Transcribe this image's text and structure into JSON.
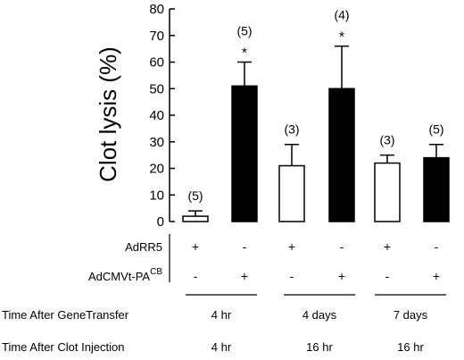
{
  "chart_data": {
    "type": "bar",
    "ylabel": "Clot lysis (%)",
    "ylim": [
      0,
      80
    ],
    "yticks": [
      "0",
      "10",
      "20",
      "30",
      "40",
      "50",
      "60",
      "70",
      "80"
    ],
    "colors": {
      "adrr5": "#ffffff",
      "adcmvt": "#000000",
      "stroke": "#000000"
    },
    "bars": [
      {
        "treatment": "AdRR5",
        "value": 2,
        "error": 2,
        "n_label": "(5)",
        "significance": ""
      },
      {
        "treatment": "AdCMVt-PA",
        "value": 51,
        "error": 9,
        "n_label": "(5)",
        "significance": "*"
      },
      {
        "treatment": "AdRR5",
        "value": 21,
        "error": 8,
        "n_label": "(3)",
        "significance": ""
      },
      {
        "treatment": "AdCMVt-PA",
        "value": 50,
        "error": 16,
        "n_label": "(4)",
        "significance": "*"
      },
      {
        "treatment": "AdRR5",
        "value": 22,
        "error": 3,
        "n_label": "(3)",
        "significance": ""
      },
      {
        "treatment": "AdCMVt-PA",
        "value": 24,
        "error": 5,
        "n_label": "(5)",
        "significance": ""
      }
    ],
    "rows": {
      "adrr5": {
        "label": "AdRR5",
        "signs": [
          "+",
          "-",
          "+",
          "-",
          "+",
          "-"
        ]
      },
      "adcmvt": {
        "label": "AdCMVt-PA",
        "superscript": "CB",
        "signs": [
          "-",
          "+",
          "-",
          "+",
          "-",
          "+"
        ]
      }
    },
    "time_after_gene_transfer": {
      "label": "Time After GeneTransfer",
      "values": [
        "4 hr",
        "4 days",
        "7 days"
      ]
    },
    "time_after_clot_injection": {
      "label": "Time After Clot Injection",
      "values": [
        "4 hr",
        "16 hr",
        "16 hr"
      ]
    }
  }
}
